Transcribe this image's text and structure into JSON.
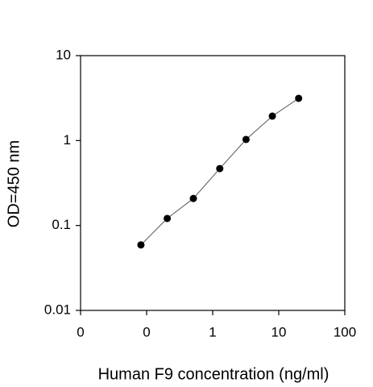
{
  "chart_data": {
    "type": "scatter",
    "x_label": "Human F9 concentration (ng/ml)",
    "y_label": "OD=450 nm",
    "x_scale": "log",
    "y_scale": "log",
    "xlim": [
      0.01,
      100
    ],
    "xticks": [
      {
        "value": 0.01,
        "label": "0"
      },
      {
        "value": 0.1,
        "label": "0"
      },
      1,
      10,
      100
    ],
    "ylim": [
      0.01,
      10
    ],
    "yticks": [
      {
        "value": 0.01,
        "label": "0.01"
      },
      {
        "value": 0.1,
        "label": "0.1"
      },
      1,
      10
    ],
    "series": [
      {
        "color": "#000000",
        "x": [
          0.082,
          0.205,
          0.51,
          1.28,
          3.2,
          8,
          20
        ],
        "values": [
          0.059,
          0.121,
          0.208,
          0.468,
          1.03,
          1.94,
          3.14
        ]
      }
    ]
  }
}
